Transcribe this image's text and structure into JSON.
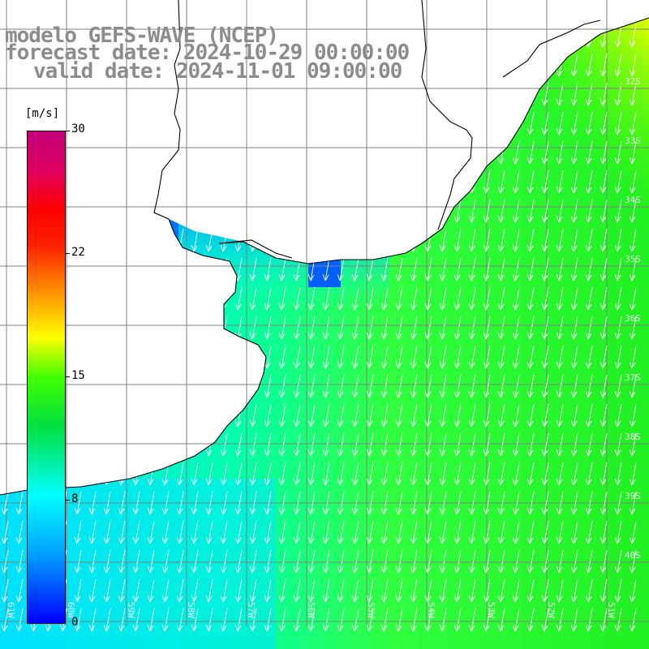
{
  "header": {
    "line1": "modelo GEFS-WAVE (NCEP)",
    "line2": "forecast date: 2024-10-29 00:00:00",
    "line3": "valid date: 2024-11-01 09:00:00"
  },
  "colorbar": {
    "unit": "[m/s]",
    "ticks": [
      "30",
      "22",
      "15",
      "8",
      "0"
    ],
    "colors": [
      "#0000ff",
      "#00a0ff",
      "#00ffff",
      "#00e040",
      "#40ff00",
      "#ffff00",
      "#ffa000",
      "#ff2000",
      "#c0007a"
    ]
  },
  "map": {
    "lon_labels": [
      "61W",
      "60W",
      "59W",
      "58W",
      "57W",
      "56W",
      "55W",
      "54W",
      "53W",
      "52W",
      "51W"
    ],
    "lat_labels": [
      "32S",
      "33S",
      "34S",
      "35S",
      "36S",
      "37S",
      "38S",
      "39S",
      "40S"
    ],
    "wind_direction": "from north to south",
    "colors": {
      "land": "#ffffff",
      "grid": "#808080",
      "arrows": "#ffffff",
      "coast": "#000000"
    }
  }
}
